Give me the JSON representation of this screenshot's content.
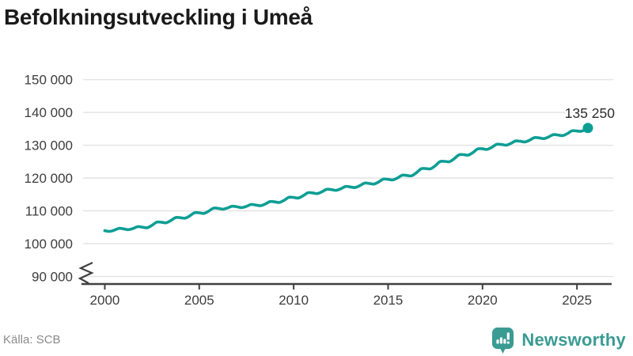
{
  "title": "Befolkningsutveckling i Umeå",
  "footer": {
    "source": "Källa: SCB",
    "brand": "Newsworthy"
  },
  "colors": {
    "accent_line": "#0d9e94",
    "logo_teal": "#3a9b93",
    "grid": "#e4e4e4",
    "axis": "#404040",
    "tick_text": "#3d3d3d",
    "annotation_text": "#2b2b2b",
    "title_text": "#1a1a1a",
    "muted_text": "#8a8a8a",
    "background": "#ffffff"
  },
  "chart_data": {
    "type": "line",
    "title": "Befolkningsutveckling i Umeå",
    "series_name": "Folkmängd Umeå",
    "xlabel": "",
    "ylabel": "",
    "grid": true,
    "legend": false,
    "axis_break": true,
    "xlim": [
      1998.85,
      2026.92
    ],
    "ylim": [
      87700,
      151600
    ],
    "x_ticks": [
      {
        "value": 2000,
        "label": "2000"
      },
      {
        "value": 2005,
        "label": "2005"
      },
      {
        "value": 2010,
        "label": "2010"
      },
      {
        "value": 2015,
        "label": "2015"
      },
      {
        "value": 2020,
        "label": "2020"
      },
      {
        "value": 2025,
        "label": "2025"
      }
    ],
    "y_ticks": [
      {
        "value": 150000,
        "label": "150 000"
      },
      {
        "value": 140000,
        "label": "140 000"
      },
      {
        "value": 130000,
        "label": "130 000"
      },
      {
        "value": 120000,
        "label": "120 000"
      },
      {
        "value": 110000,
        "label": "110 000"
      },
      {
        "value": 100000,
        "label": "100 000"
      },
      {
        "value": 90000,
        "label": "90 000"
      }
    ],
    "end_label": "135 250",
    "end_point": {
      "x": 2025.58,
      "y": 135250
    },
    "points": [
      [
        2000.0,
        103970
      ],
      [
        2000.25,
        103724
      ],
      [
        2000.5,
        104114
      ],
      [
        2000.75,
        104681
      ],
      [
        2001.0,
        104512
      ],
      [
        2001.25,
        104261
      ],
      [
        2001.5,
        104634
      ],
      [
        2001.75,
        105182
      ],
      [
        2002.0,
        105006
      ],
      [
        2002.25,
        104858
      ],
      [
        2002.5,
        105590
      ],
      [
        2002.75,
        106547
      ],
      [
        2003.0,
        106525
      ],
      [
        2003.25,
        106364
      ],
      [
        2003.5,
        107051
      ],
      [
        2003.75,
        107958
      ],
      [
        2004.0,
        107917
      ],
      [
        2004.25,
        107764
      ],
      [
        2004.5,
        108480
      ],
      [
        2004.75,
        109419
      ],
      [
        2005.0,
        109390
      ],
      [
        2005.25,
        109227
      ],
      [
        2005.5,
        109906
      ],
      [
        2005.75,
        110803
      ],
      [
        2006.0,
        110758
      ],
      [
        2006.25,
        110506
      ],
      [
        2006.5,
        110873
      ],
      [
        2006.75,
        111413
      ],
      [
        2007.0,
        111235
      ],
      [
        2007.25,
        110989
      ],
      [
        2007.5,
        111376
      ],
      [
        2007.75,
        111941
      ],
      [
        2008.0,
        111771
      ],
      [
        2008.25,
        111567
      ],
      [
        2008.5,
        112102
      ],
      [
        2008.75,
        112834
      ],
      [
        2009.0,
        112728
      ],
      [
        2009.25,
        112563
      ],
      [
        2009.5,
        113234
      ],
      [
        2009.75,
        114123
      ],
      [
        2010.0,
        114075
      ],
      [
        2010.25,
        113915
      ],
      [
        2010.5,
        114604
      ],
      [
        2010.75,
        115513
      ],
      [
        2011.0,
        115473
      ],
      [
        2011.25,
        115272
      ],
      [
        2011.5,
        115819
      ],
      [
        2011.75,
        116566
      ],
      [
        2012.0,
        116465
      ],
      [
        2012.25,
        116248
      ],
      [
        2012.5,
        116738
      ],
      [
        2012.75,
        117420
      ],
      [
        2013.0,
        117294
      ],
      [
        2013.25,
        117100
      ],
      [
        2013.5,
        117669
      ],
      [
        2013.75,
        118441
      ],
      [
        2014.0,
        118349
      ],
      [
        2014.25,
        118175
      ],
      [
        2014.5,
        118818
      ],
      [
        2014.75,
        119673
      ],
      [
        2015.0,
        119613
      ],
      [
        2015.25,
        119429
      ],
      [
        2015.5,
        120037
      ],
      [
        2015.75,
        120852
      ],
      [
        2016.0,
        120777
      ],
      [
        2016.25,
        120689
      ],
      [
        2016.5,
        121629
      ],
      [
        2016.75,
        122825
      ],
      [
        2017.0,
        122892
      ],
      [
        2017.25,
        122811
      ],
      [
        2017.5,
        123777
      ],
      [
        2017.75,
        125002
      ],
      [
        2018.0,
        125080
      ],
      [
        2018.25,
        124984
      ],
      [
        2018.5,
        125898
      ],
      [
        2018.75,
        127063
      ],
      [
        2019.0,
        127119
      ],
      [
        2019.25,
        126997
      ],
      [
        2019.5,
        127821
      ],
      [
        2019.75,
        128884
      ],
      [
        2020.0,
        128901
      ],
      [
        2020.25,
        128733
      ],
      [
        2020.5,
        129396
      ],
      [
        2020.75,
        130276
      ],
      [
        2021.0,
        130224
      ],
      [
        2021.25,
        130021
      ],
      [
        2021.5,
        130560
      ],
      [
        2021.75,
        131298
      ],
      [
        2022.0,
        131193
      ],
      [
        2022.25,
        130997
      ],
      [
        2022.5,
        131562
      ],
      [
        2022.75,
        132329
      ],
      [
        2023.0,
        132235
      ],
      [
        2023.25,
        132023
      ],
      [
        2023.5,
        132532
      ],
      [
        2023.75,
        133235
      ],
      [
        2024.0,
        133117
      ],
      [
        2024.25,
        132940
      ],
      [
        2024.5,
        133568
      ],
      [
        2024.75,
        134408
      ],
      [
        2025.0,
        134342
      ],
      [
        2025.2,
        134250
      ],
      [
        2025.45,
        134700
      ],
      [
        2025.58,
        135250
      ]
    ]
  }
}
